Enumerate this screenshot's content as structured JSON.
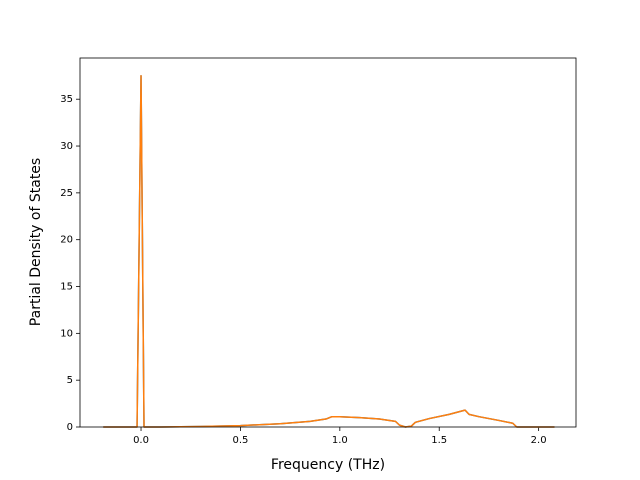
{
  "chart_data": {
    "type": "line",
    "xlabel": "Frequency (THz)",
    "ylabel": "Partial Density of States",
    "x": [
      -0.19,
      -0.02,
      0.0,
      0.015,
      0.1,
      0.3,
      0.5,
      0.7,
      0.85,
      0.93,
      0.96,
      1.0,
      1.1,
      1.2,
      1.28,
      1.3,
      1.33,
      1.36,
      1.38,
      1.45,
      1.55,
      1.63,
      1.65,
      1.7,
      1.8,
      1.87,
      1.89,
      2.0,
      2.08
    ],
    "series": [
      {
        "color": "#1f77b4",
        "values": [
          0,
          0,
          37.5,
          0,
          0,
          0.05,
          0.15,
          0.35,
          0.6,
          0.85,
          1.1,
          1.1,
          1.0,
          0.85,
          0.6,
          0.2,
          0,
          0.1,
          0.5,
          0.9,
          1.35,
          1.8,
          1.35,
          1.1,
          0.7,
          0.4,
          0,
          0,
          0
        ]
      },
      {
        "color": "#ff7f0e",
        "values": [
          0,
          0,
          37.5,
          0,
          0,
          0.05,
          0.15,
          0.35,
          0.6,
          0.85,
          1.1,
          1.1,
          1.0,
          0.85,
          0.6,
          0.2,
          0,
          0.1,
          0.5,
          0.9,
          1.35,
          1.8,
          1.35,
          1.1,
          0.7,
          0.4,
          0,
          0,
          0
        ]
      }
    ],
    "xlim": [
      -0.307,
      2.188
    ],
    "ylim": [
      0,
      39.4
    ],
    "xticks": [
      {
        "value": 0,
        "label": "0.0"
      },
      0.5,
      {
        "value": 1,
        "label": "1.0"
      },
      1.5,
      {
        "value": 2,
        "label": "2.0"
      }
    ],
    "yticks": [
      0,
      5,
      10,
      15,
      20,
      25,
      30,
      35
    ]
  }
}
